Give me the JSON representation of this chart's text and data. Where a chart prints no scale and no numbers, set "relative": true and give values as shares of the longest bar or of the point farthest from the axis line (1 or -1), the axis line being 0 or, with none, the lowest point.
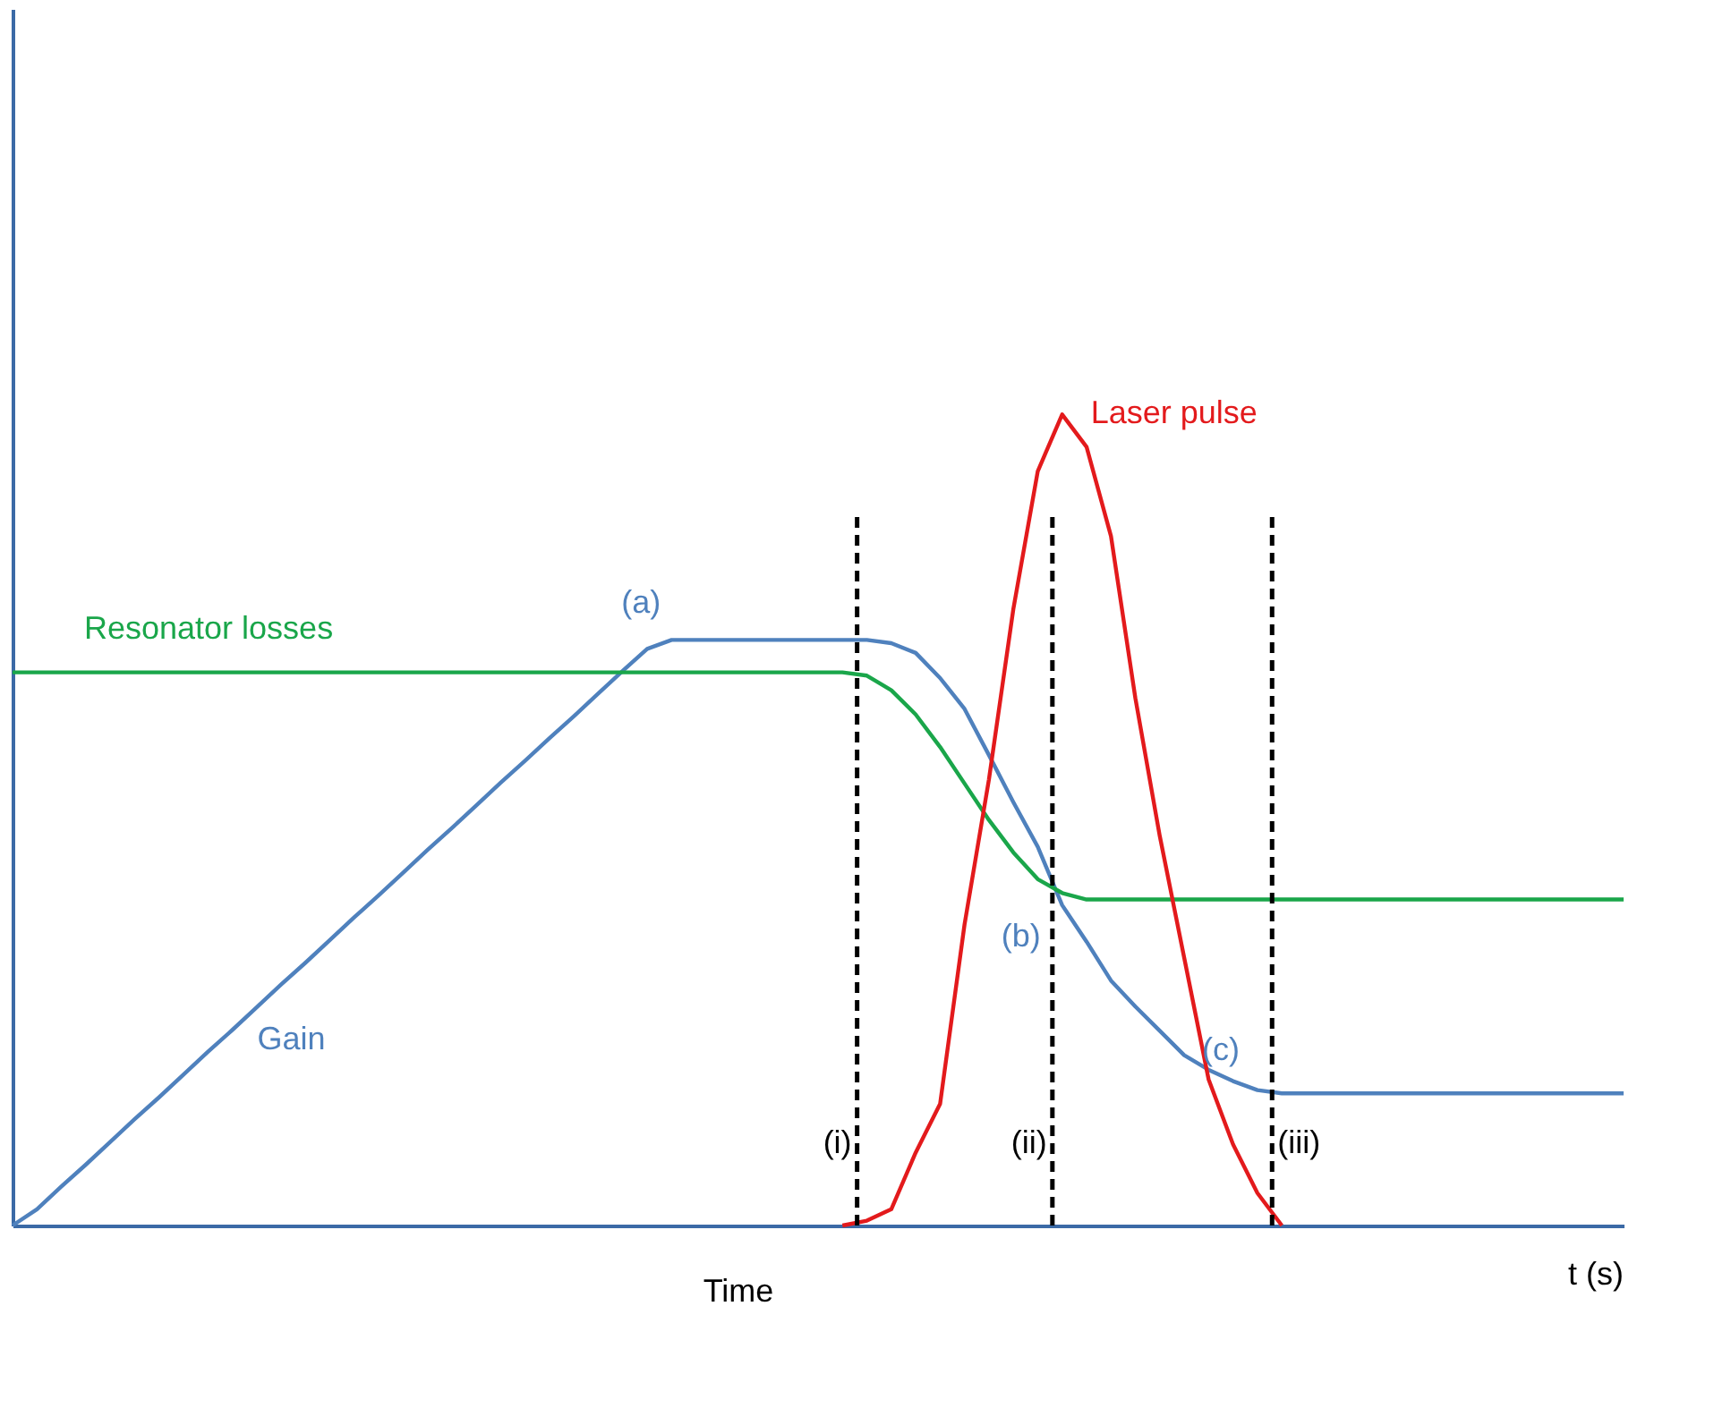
{
  "chart_data": {
    "type": "line",
    "relative": true,
    "xlabel": "Time",
    "tick_labels": false,
    "marker": "none",
    "line_style": "solid",
    "categories": [
      null,
      null,
      null,
      null,
      null,
      null,
      null,
      null,
      null,
      null,
      null,
      null,
      null,
      null,
      null,
      null,
      null,
      null,
      null,
      null,
      null,
      null,
      null,
      null,
      null,
      null,
      null,
      null,
      null,
      null,
      null,
      null,
      null,
      null,
      null,
      null,
      null,
      null,
      null,
      null,
      null,
      null,
      null,
      null,
      null,
      null,
      null,
      null,
      null,
      null,
      null,
      null,
      null,
      null,
      null,
      null,
      null,
      null,
      null,
      null,
      null,
      null,
      null,
      null,
      null,
      null,
      null
    ],
    "series": [
      {
        "name": "Gain",
        "color": "#4f81bd",
        "values": [
          0,
          0.02,
          0.048,
          0.075,
          0.103,
          0.131,
          0.158,
          0.186,
          0.214,
          0.241,
          0.269,
          0.297,
          0.324,
          0.352,
          0.38,
          0.407,
          0.435,
          0.463,
          0.49,
          0.518,
          0.546,
          0.573,
          0.601,
          0.628,
          0.656,
          0.684,
          0.711,
          0.722,
          0.722,
          0.722,
          0.722,
          0.722,
          0.722,
          0.722,
          0.722,
          0.722,
          0.718,
          0.706,
          0.675,
          0.637,
          0.58,
          0.522,
          0.467,
          0.395,
          0.35,
          0.302,
          0.27,
          0.24,
          0.21,
          0.192,
          0.178,
          0.167,
          0.163,
          0.163,
          0.163,
          0.163,
          0.163,
          0.163,
          0.163,
          0.163,
          0.163,
          0.163,
          0.163,
          0.163,
          0.163,
          0.163,
          0.163
        ]
      },
      {
        "name": "Resonator losses",
        "color": "#1aa64a",
        "values": [
          0.682,
          0.682,
          0.682,
          0.682,
          0.682,
          0.682,
          0.682,
          0.682,
          0.682,
          0.682,
          0.682,
          0.682,
          0.682,
          0.682,
          0.682,
          0.682,
          0.682,
          0.682,
          0.682,
          0.682,
          0.682,
          0.682,
          0.682,
          0.682,
          0.682,
          0.682,
          0.682,
          0.682,
          0.682,
          0.682,
          0.682,
          0.682,
          0.682,
          0.682,
          0.682,
          0.678,
          0.66,
          0.63,
          0.59,
          0.545,
          0.5,
          0.46,
          0.427,
          0.41,
          0.402,
          0.402,
          0.402,
          0.402,
          0.402,
          0.402,
          0.402,
          0.402,
          0.402,
          0.402,
          0.402,
          0.402,
          0.402,
          0.402,
          0.402,
          0.402,
          0.402,
          0.402,
          0.402,
          0.402,
          0.402,
          0.402,
          0.402
        ]
      },
      {
        "name": "Laser pulse",
        "color": "#e31a1c",
        "values": [
          null,
          null,
          null,
          null,
          null,
          null,
          null,
          null,
          null,
          null,
          null,
          null,
          null,
          null,
          null,
          null,
          null,
          null,
          null,
          null,
          null,
          null,
          null,
          null,
          null,
          null,
          null,
          null,
          null,
          null,
          null,
          null,
          null,
          null,
          0,
          0.006,
          0.02,
          0.09,
          0.15,
          0.371,
          0.55,
          0.76,
          0.93,
          1,
          0.96,
          0.85,
          0.65,
          0.48,
          0.33,
          0.18,
          0.1,
          0.04,
          0,
          null,
          null,
          null,
          null,
          null,
          null,
          null,
          null,
          null,
          null,
          null,
          null,
          null,
          null
        ]
      }
    ],
    "annotations": [
      "(a)",
      "(b)",
      "(c)",
      "(i)",
      "(ii)",
      "(iii)",
      "t (s)"
    ]
  }
}
